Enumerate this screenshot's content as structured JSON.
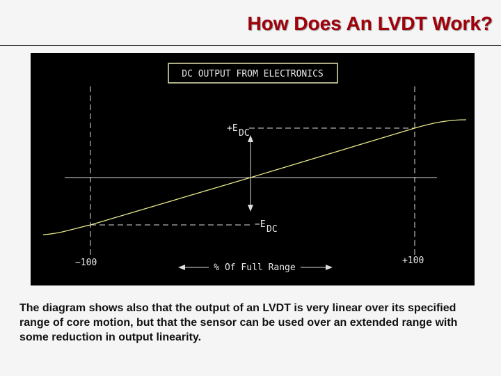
{
  "header": {
    "title": "How Does An LVDT Work?"
  },
  "diagram": {
    "box_label": "DC OUTPUT FROM ELECTRONICS",
    "plus_e": "+E",
    "plus_e_sub": "DC",
    "minus_e": "−E",
    "minus_e_sub": "DC",
    "left_limit": "−100",
    "right_limit": "+100",
    "axis_label": "% Of Full Range"
  },
  "caption": "The diagram shows also that the output of an LVDT is very linear over its specified range of  core motion, but that the sensor can be used over an extended range with some reduction in output linearity."
}
